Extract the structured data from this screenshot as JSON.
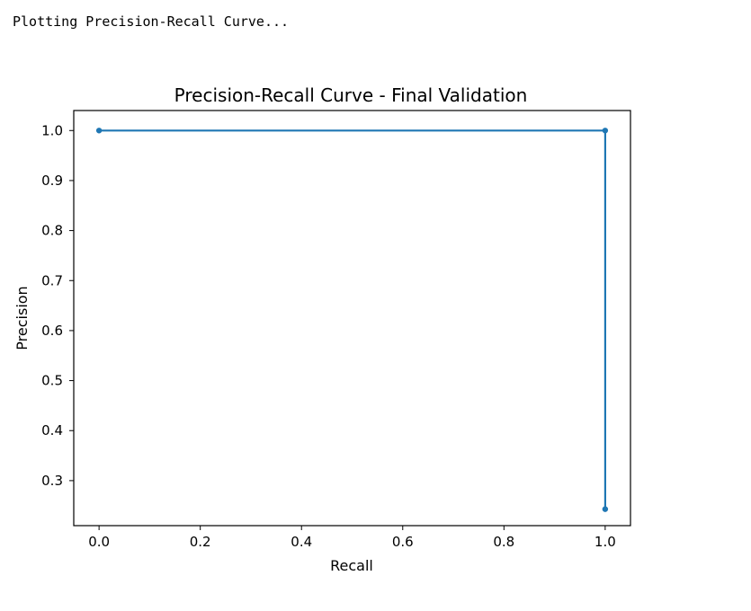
{
  "console": {
    "text": "Plotting Precision-Recall Curve..."
  },
  "chart_data": {
    "type": "line",
    "title": "Precision-Recall Curve - Final Validation",
    "xlabel": "Recall",
    "ylabel": "Precision",
    "xlim": [
      -0.05,
      1.05
    ],
    "ylim": [
      0.21,
      1.04
    ],
    "xticks": [
      0.0,
      0.2,
      0.4,
      0.6,
      0.8,
      1.0
    ],
    "xtick_labels": [
      "0.0",
      "0.2",
      "0.4",
      "0.6",
      "0.8",
      "1.0"
    ],
    "yticks": [
      0.3,
      0.4,
      0.5,
      0.6,
      0.7,
      0.8,
      0.9,
      1.0
    ],
    "ytick_labels": [
      "0.3",
      "0.4",
      "0.5",
      "0.6",
      "0.7",
      "0.8",
      "0.9",
      "1.0"
    ],
    "grid": false,
    "series": [
      {
        "x": [
          0.0,
          1.0,
          1.0
        ],
        "y": [
          1.0,
          1.0,
          0.243
        ],
        "color": "#1f77b4",
        "marker": "circle"
      }
    ]
  }
}
